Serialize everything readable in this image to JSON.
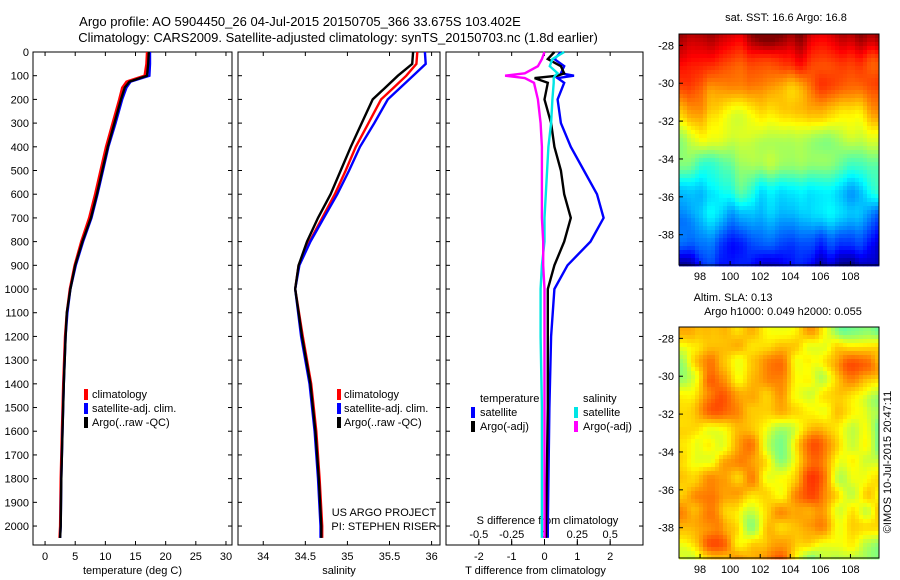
{
  "header": {
    "line1": "Argo profile: AO 5904450_26 04-Jul-2015 20150705_366 33.675S 103.402E",
    "line2": "Climatology: CARS2009. Satellite-adjusted climatology: synTS_20150703.nc (1.8d earlier)"
  },
  "watermark": "©IMOS 10-Jul-2015 20:47:11",
  "project": {
    "line1": "US ARGO PROJECT",
    "line2": "PI: STEPHEN RISER"
  },
  "colors": {
    "climatology": "#ff0000",
    "satellite": "#0000ff",
    "argo": "#000000",
    "cyan": "#00e5e5",
    "magenta": "#ff00ff"
  },
  "chart_data": [
    {
      "type": "line",
      "name": "temperature",
      "xlabel": "temperature (deg C)",
      "xlim": [
        -2,
        31
      ],
      "xticks": [
        0,
        5,
        10,
        15,
        20,
        25,
        30
      ],
      "ylim": [
        0,
        2080
      ],
      "yticks": [
        0,
        100,
        200,
        300,
        400,
        500,
        600,
        700,
        800,
        900,
        1000,
        1100,
        1200,
        1300,
        1400,
        1500,
        1600,
        1700,
        1800,
        1900,
        2000
      ],
      "legend": [
        "climatology",
        "satellite-adj. clim.",
        "Argo(..raw -QC)"
      ],
      "depth": [
        0,
        50,
        100,
        125,
        150,
        200,
        300,
        400,
        500,
        600,
        700,
        800,
        900,
        1000,
        1100,
        1200,
        1400,
        1600,
        1800,
        2000,
        2050
      ],
      "series": [
        {
          "name": "climatology",
          "values": [
            16.9,
            16.8,
            16.5,
            13.5,
            12.8,
            12.3,
            11.2,
            10.1,
            9.2,
            8.3,
            7.3,
            6.0,
            4.9,
            4.1,
            3.6,
            3.3,
            3.0,
            2.8,
            2.6,
            2.5,
            2.4
          ]
        },
        {
          "name": "satellite-adj. clim.",
          "values": [
            17.4,
            17.4,
            17.3,
            14.2,
            13.5,
            12.8,
            11.7,
            10.5,
            9.6,
            8.7,
            7.7,
            6.3,
            5.1,
            4.2,
            3.7,
            3.4,
            3.1,
            2.9,
            2.7,
            2.6,
            2.5
          ]
        },
        {
          "name": "Argo(..raw -QC)",
          "values": [
            17.2,
            17.1,
            16.9,
            14.0,
            13.2,
            12.6,
            11.5,
            10.4,
            9.5,
            8.6,
            7.6,
            6.2,
            5.0,
            4.2,
            3.6,
            3.4,
            3.1,
            2.9,
            2.7,
            2.6,
            2.5
          ]
        }
      ]
    },
    {
      "type": "line",
      "name": "salinity",
      "xlabel": "salinity",
      "xlim": [
        33.7,
        36.1
      ],
      "xticks": [
        34,
        34.5,
        35,
        35.5,
        36
      ],
      "ylim": [
        0,
        2080
      ],
      "legend": [
        "climatology",
        "satellite-adj. clim.",
        "Argo(..raw -QC)"
      ],
      "depth": [
        0,
        50,
        100,
        150,
        200,
        300,
        400,
        500,
        600,
        700,
        800,
        900,
        1000,
        1200,
        1400,
        1600,
        1800,
        2000,
        2050
      ],
      "series": [
        {
          "name": "climatology",
          "values": [
            35.83,
            35.82,
            35.7,
            35.55,
            35.4,
            35.25,
            35.1,
            34.98,
            34.85,
            34.7,
            34.55,
            34.42,
            34.38,
            34.47,
            34.57,
            34.63,
            34.67,
            34.7,
            34.7
          ]
        },
        {
          "name": "satellite-adj. clim.",
          "values": [
            35.92,
            35.93,
            35.78,
            35.63,
            35.48,
            35.32,
            35.15,
            35.02,
            34.88,
            34.72,
            34.56,
            34.43,
            34.38,
            34.45,
            34.55,
            34.61,
            34.65,
            34.68,
            34.68
          ]
        },
        {
          "name": "Argo(..raw -QC)",
          "values": [
            35.78,
            35.77,
            35.6,
            35.45,
            35.3,
            35.17,
            35.04,
            34.92,
            34.8,
            34.65,
            34.52,
            34.42,
            34.38,
            34.46,
            34.56,
            34.62,
            34.66,
            34.69,
            34.69
          ]
        }
      ]
    },
    {
      "type": "line",
      "name": "difference",
      "xlabel": "T difference from climatology",
      "top_axis_label": "S difference from climatology",
      "xlim": [
        -3,
        3
      ],
      "xticks": [
        -2,
        -1,
        0,
        1,
        2
      ],
      "s_ticks": [
        "-0.5",
        "-0.25",
        "0",
        "0.25",
        "0.5"
      ],
      "legend_titles": [
        "temperature",
        "salinity"
      ],
      "legend": [
        "satellite",
        "Argo(-adj)",
        "satellite",
        "Argo(-adj)"
      ],
      "depth": [
        0,
        30,
        60,
        90,
        100,
        110,
        130,
        200,
        300,
        400,
        500,
        600,
        700,
        800,
        900,
        1000,
        1200,
        1500,
        2000,
        2050
      ],
      "series": [
        {
          "name": "temperature satellite",
          "values": [
            0.5,
            0.3,
            0.6,
            0.5,
            0.9,
            0.4,
            0.6,
            0.4,
            0.5,
            0.8,
            1.2,
            1.6,
            1.8,
            1.4,
            0.7,
            0.3,
            0.2,
            0.15,
            0.1,
            0.1
          ]
        },
        {
          "name": "temperature Argo(-adj)",
          "values": [
            0.3,
            0.1,
            0.5,
            0.6,
            0.4,
            -0.3,
            0.1,
            0.0,
            0.2,
            0.3,
            0.5,
            0.6,
            0.8,
            0.6,
            0.3,
            0.1,
            0.1,
            0.1,
            0.05,
            0.05
          ]
        },
        {
          "name": "salinity satellite",
          "values": [
            0.15,
            0.06,
            0.04,
            0.1,
            0.08,
            0.07,
            0.07,
            0.06,
            0.05,
            0.03,
            0.02,
            0.01,
            0.0,
            0.0,
            -0.02,
            -0.03,
            -0.03,
            -0.02,
            -0.02,
            -0.02
          ]
        },
        {
          "name": "salinity Argo(-adj)",
          "values": [
            0.0,
            -0.02,
            -0.05,
            -0.15,
            -0.3,
            -0.15,
            -0.08,
            -0.05,
            -0.03,
            -0.02,
            -0.02,
            -0.02,
            -0.02,
            -0.01,
            -0.01,
            0.0,
            0.0,
            0.0,
            0.0,
            0.0
          ]
        }
      ]
    },
    {
      "type": "heatmap",
      "name": "sst-map",
      "title": "sat. SST: 16.6  Argo: 16.8",
      "xticks": [
        98,
        100,
        102,
        104,
        106,
        108
      ],
      "yticks": [
        -28,
        -30,
        -32,
        -34,
        -36,
        -38
      ]
    },
    {
      "type": "heatmap",
      "name": "sla-map",
      "title1": "Altim. SLA: 0.13",
      "title2": "Argo h1000: 0.049  h2000: 0.055",
      "xticks": [
        98,
        100,
        102,
        104,
        106,
        108
      ],
      "yticks": [
        -28,
        -30,
        -32,
        -34,
        -36,
        -38
      ]
    }
  ]
}
